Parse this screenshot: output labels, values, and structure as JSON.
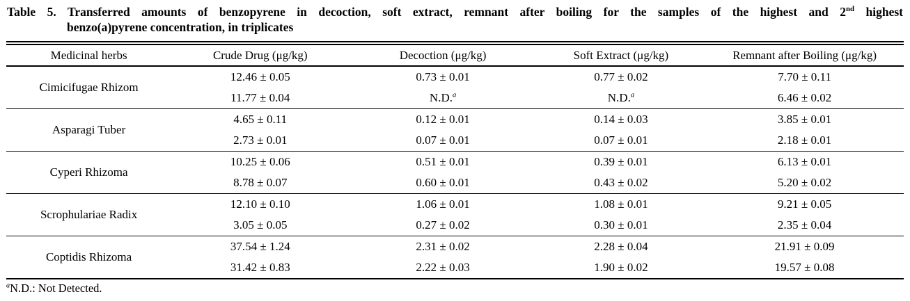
{
  "title": {
    "line1_prefix": "Table 5.",
    "line1_text": "Transferred amounts of benzopyrene in decoction, soft extract, remnant after boiling for the samples of the highest and 2",
    "line1_sup": "nd",
    "line1_end": "highest",
    "line2": "benzo(a)pyrene concentration, in triplicates"
  },
  "table": {
    "columns": [
      "Medicinal herbs",
      "Crude Drug (μg/kg)",
      "Decoction (μg/kg)",
      "Soft Extract (μg/kg)",
      "Remnant after  Boiling (μg/kg)"
    ],
    "column_widths_pct": [
      18.4,
      19.8,
      20.9,
      18.8,
      22.1
    ],
    "groups": [
      {
        "herb": "Cimicifugae Rhizom",
        "rows": [
          [
            "12.46 ± 0.05",
            "0.73 ± 0.01",
            "0.77 ± 0.02",
            "7.70 ± 0.11"
          ],
          [
            "11.77 ± 0.04",
            "N.D.^a",
            "N.D.^a",
            "6.46 ± 0.02"
          ]
        ]
      },
      {
        "herb": "Asparagi Tuber",
        "rows": [
          [
            "4.65 ± 0.11",
            "0.12 ± 0.01",
            "0.14 ± 0.03",
            "3.85 ± 0.01"
          ],
          [
            "2.73 ± 0.01",
            "0.07 ± 0.01",
            "0.07 ± 0.01",
            "2.18 ± 0.01"
          ]
        ]
      },
      {
        "herb": "Cyperi Rhizoma",
        "rows": [
          [
            "10.25 ± 0.06",
            "0.51 ± 0.01",
            "0.39 ± 0.01",
            "6.13 ± 0.01"
          ],
          [
            "8.78 ± 0.07",
            "0.60 ± 0.01",
            "0.43 ± 0.02",
            "5.20 ± 0.02"
          ]
        ]
      },
      {
        "herb": "Scrophulariae Radix",
        "rows": [
          [
            "12.10 ± 0.10",
            "1.06 ± 0.01",
            "1.08 ± 0.01",
            "9.21 ± 0.05"
          ],
          [
            "3.05 ± 0.05",
            "0.27 ± 0.02",
            "0.30 ± 0.01",
            "2.35 ± 0.04"
          ]
        ]
      },
      {
        "herb": "Coptidis Rhizoma",
        "rows": [
          [
            "37.54 ± 1.24",
            "2.31 ± 0.02",
            "2.28 ± 0.04",
            "21.91 ± 0.09"
          ],
          [
            "31.42 ± 0.83",
            "2.22 ± 0.03",
            "1.90 ± 0.02",
            "19.57 ± 0.08"
          ]
        ]
      }
    ]
  },
  "footnote": {
    "marker": "a",
    "text": "N.D.: Not Detected."
  }
}
